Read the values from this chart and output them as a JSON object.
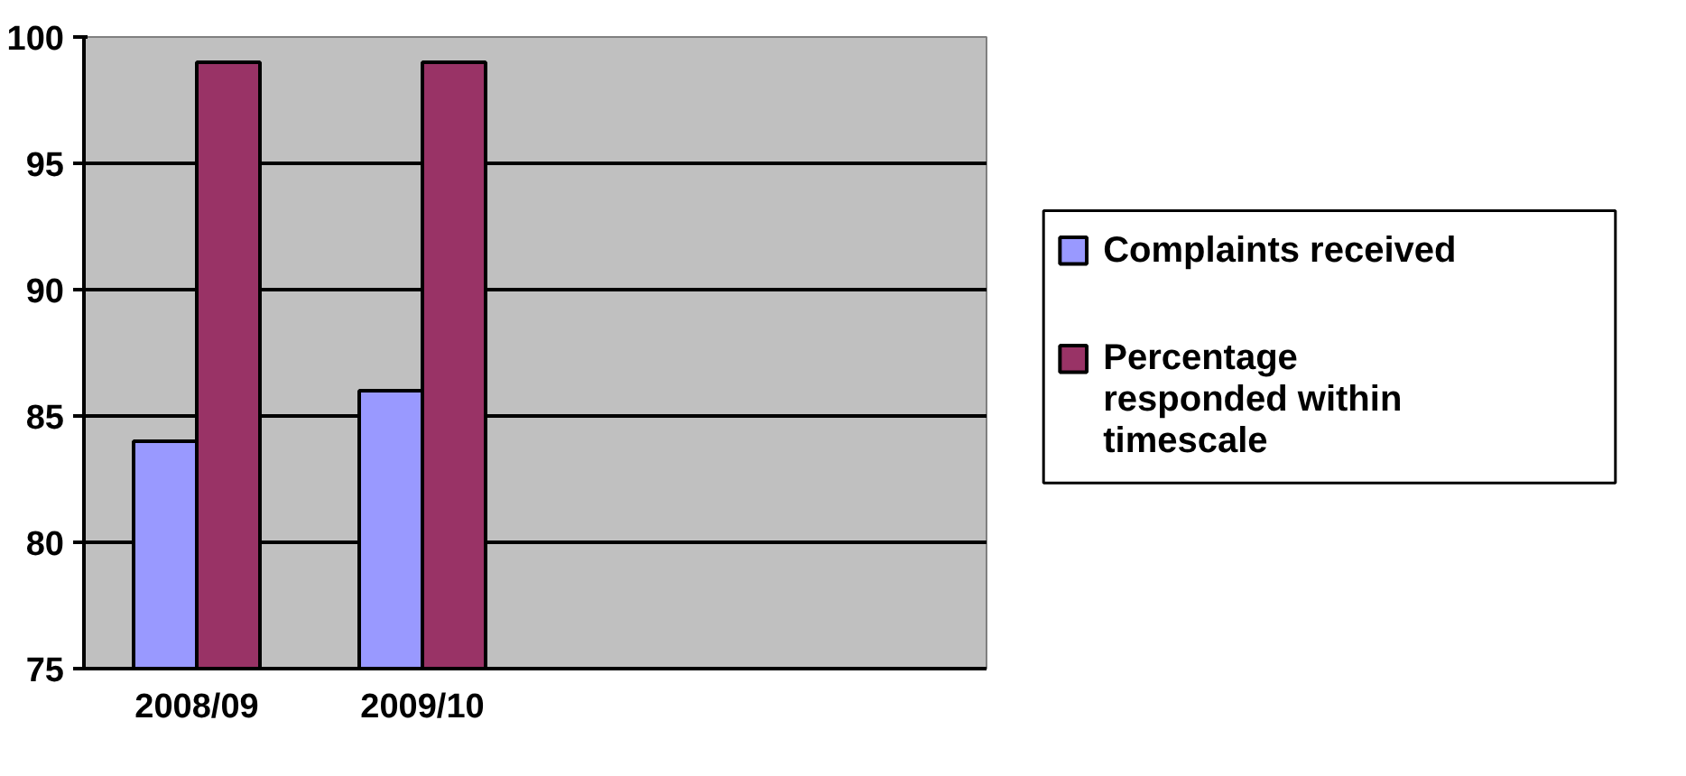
{
  "chart_data": {
    "type": "bar",
    "categories": [
      "2008/09",
      "2009/10",
      null,
      null
    ],
    "series": [
      {
        "name": "Complaints received",
        "color": "#9999ff",
        "values": [
          84,
          86,
          null,
          null
        ]
      },
      {
        "name": "Percentage responded within timescale",
        "color": "#993366",
        "values": [
          99,
          99,
          null,
          null
        ]
      }
    ],
    "ylim": [
      75,
      100
    ],
    "yticks": [
      75,
      80,
      85,
      90,
      95,
      100
    ],
    "grid": "y",
    "legend": "right"
  }
}
